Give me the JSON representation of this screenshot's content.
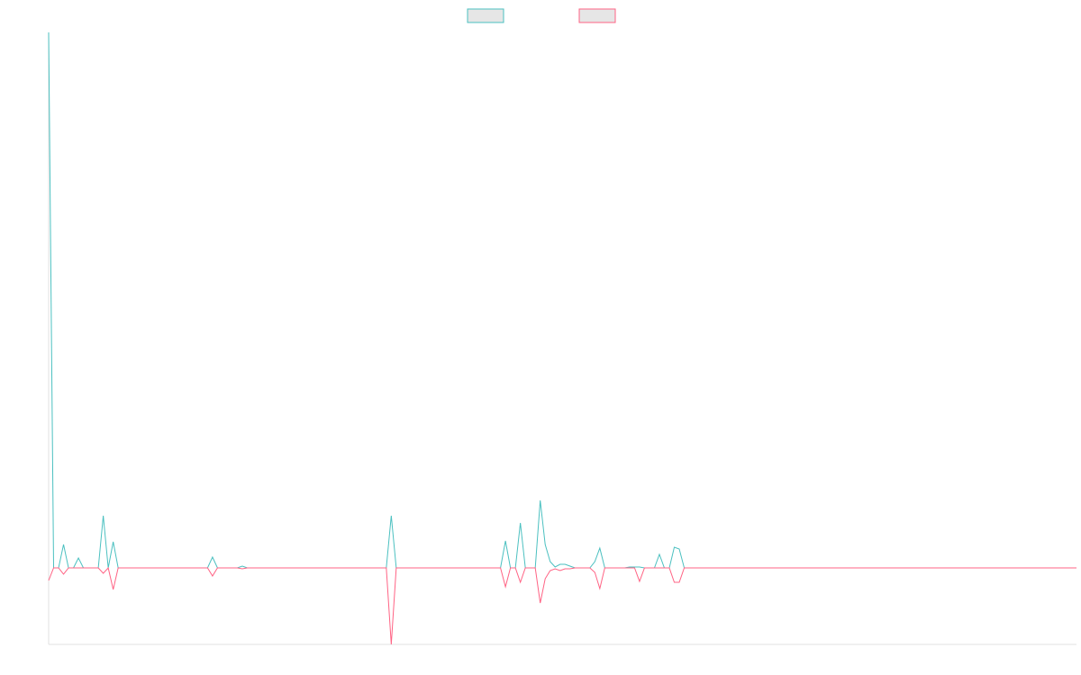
{
  "chart_data": {
    "type": "line",
    "categories": [
      null,
      null,
      null,
      null,
      null,
      null,
      null,
      null,
      null,
      null,
      null,
      null,
      null,
      null,
      null,
      null,
      null,
      null,
      null,
      null,
      null,
      null,
      null,
      null,
      null,
      null,
      null,
      null,
      null,
      null,
      null,
      null,
      null,
      null,
      null,
      null,
      null,
      null,
      null,
      null,
      null,
      null,
      null,
      null,
      null,
      null,
      null,
      null,
      null,
      null,
      null,
      null,
      null,
      null,
      null,
      null,
      null,
      null,
      null,
      null,
      null,
      null,
      null,
      null,
      null,
      null,
      null,
      null,
      null,
      null,
      null,
      null,
      null,
      null,
      null,
      null,
      null,
      null,
      null,
      null,
      null,
      null,
      null,
      null,
      null,
      null,
      null,
      null,
      null,
      null,
      null,
      null,
      null,
      null,
      null,
      null,
      null,
      null,
      null,
      null,
      null,
      null,
      null,
      null,
      null,
      null,
      null,
      null,
      null,
      null,
      null,
      null,
      null,
      null,
      null,
      null,
      null,
      null,
      null,
      null,
      null,
      null,
      null,
      null,
      null,
      null,
      null,
      null,
      null,
      null,
      null,
      null,
      null,
      null,
      null,
      null,
      null,
      null,
      null,
      null,
      null,
      null,
      null,
      null,
      null,
      null,
      null,
      null,
      null,
      null,
      null,
      null,
      null,
      null,
      null,
      null,
      null,
      null,
      null,
      null,
      null,
      null,
      null,
      null,
      null,
      null,
      null,
      null,
      null,
      null,
      null,
      null,
      null,
      null,
      null,
      null,
      null,
      null,
      null,
      null,
      null,
      null,
      null,
      null,
      null,
      null,
      null,
      null,
      null,
      null,
      null,
      null,
      null,
      null,
      null,
      null,
      null,
      null,
      null,
      null,
      null,
      null,
      null,
      null,
      null,
      null,
      null,
      null
    ],
    "series": [
      {
        "color": "#4bc0c0",
        "values": [
          119,
          0,
          0,
          5.2,
          0,
          0,
          2.2,
          0,
          0,
          0,
          0,
          11.6,
          0,
          5.8,
          0,
          0,
          0,
          0,
          0,
          0,
          0,
          0,
          0,
          0,
          0,
          0,
          0,
          0,
          0,
          0,
          0,
          0,
          0,
          2.4,
          0,
          0,
          0,
          0,
          0,
          0.4,
          0,
          0,
          0,
          0,
          0,
          0,
          0,
          0,
          0,
          0,
          0,
          0,
          0,
          0,
          0,
          0,
          0,
          0,
          0,
          0,
          0,
          0,
          0,
          0,
          0,
          0,
          0,
          0,
          0,
          11.6,
          0,
          0,
          0,
          0,
          0,
          0,
          0,
          0,
          0,
          0,
          0,
          0,
          0,
          0,
          0,
          0,
          0,
          0,
          0,
          0,
          0,
          0,
          6,
          0,
          0,
          10,
          0,
          0,
          0,
          15,
          5.2,
          1.4,
          0.2,
          0.8,
          0.8,
          0.4,
          0,
          0,
          0,
          0,
          1.4,
          4.4,
          0,
          0,
          0,
          0,
          0,
          0.2,
          0.2,
          0.2,
          0,
          0,
          0,
          3,
          0,
          0,
          4.6,
          4.2,
          0,
          0,
          0,
          0,
          0,
          0,
          0,
          0,
          0,
          0,
          0,
          0,
          0,
          0,
          0,
          0,
          0,
          0,
          0,
          0,
          0,
          0,
          0,
          0,
          0,
          0,
          0,
          0,
          0,
          0,
          0,
          0,
          0,
          0,
          0,
          0,
          0,
          0,
          0,
          0,
          0,
          0,
          0,
          0,
          0,
          0,
          0,
          0,
          0,
          0,
          0,
          0,
          0,
          0,
          0,
          0,
          0,
          0,
          0,
          0,
          0,
          0,
          0,
          0,
          0,
          0,
          0,
          0,
          0,
          0,
          0,
          0,
          0,
          0,
          0,
          0,
          0,
          0,
          0,
          0
        ]
      },
      {
        "color": "#ff6384",
        "values": [
          -2.8,
          0,
          0,
          -1.4,
          0,
          0,
          0,
          0,
          0,
          0,
          0,
          -1.2,
          0,
          -4.8,
          0,
          0,
          0,
          0,
          0,
          0,
          0,
          0,
          0,
          0,
          0,
          0,
          0,
          0,
          0,
          0,
          0,
          0,
          0,
          -1.8,
          0,
          0,
          0,
          0,
          0,
          -0.2,
          0,
          0,
          0,
          0,
          0,
          0,
          0,
          0,
          0,
          0,
          0,
          0,
          0,
          0,
          0,
          0,
          0,
          0,
          0,
          0,
          0,
          0,
          0,
          0,
          0,
          0,
          0,
          0,
          0,
          -17,
          0,
          0,
          0,
          0,
          0,
          0,
          0,
          0,
          0,
          0,
          0,
          0,
          0,
          0,
          0,
          0,
          0,
          0,
          0,
          0,
          0,
          0,
          -4.2,
          0,
          0,
          -3.2,
          0,
          0,
          0,
          -7.8,
          -2.4,
          -0.6,
          -0.2,
          -0.6,
          -0.2,
          -0.2,
          0,
          0,
          0,
          0,
          -1,
          -4.6,
          0,
          0,
          0,
          0,
          0,
          0,
          0,
          -3,
          0,
          0,
          0,
          0,
          0,
          0,
          -3.2,
          -3.2,
          0,
          0,
          0,
          0,
          0,
          0,
          0,
          0,
          0,
          0,
          0,
          0,
          0,
          0,
          0,
          0,
          0,
          0,
          0,
          0,
          0,
          0,
          0,
          0,
          0,
          0,
          0,
          0,
          0,
          0,
          0,
          0,
          0,
          0,
          0,
          0,
          0,
          0,
          0,
          0,
          0,
          0,
          0,
          0,
          0,
          0,
          0,
          0,
          0,
          0,
          0,
          0,
          0,
          0,
          0,
          0,
          0,
          0,
          0,
          0,
          0,
          0,
          0,
          0,
          0,
          0,
          0,
          0,
          0,
          0,
          0,
          0,
          0,
          0,
          0,
          0,
          0,
          0,
          0,
          0
        ]
      }
    ],
    "ylim": [
      -17,
      119
    ],
    "legend": "top"
  }
}
